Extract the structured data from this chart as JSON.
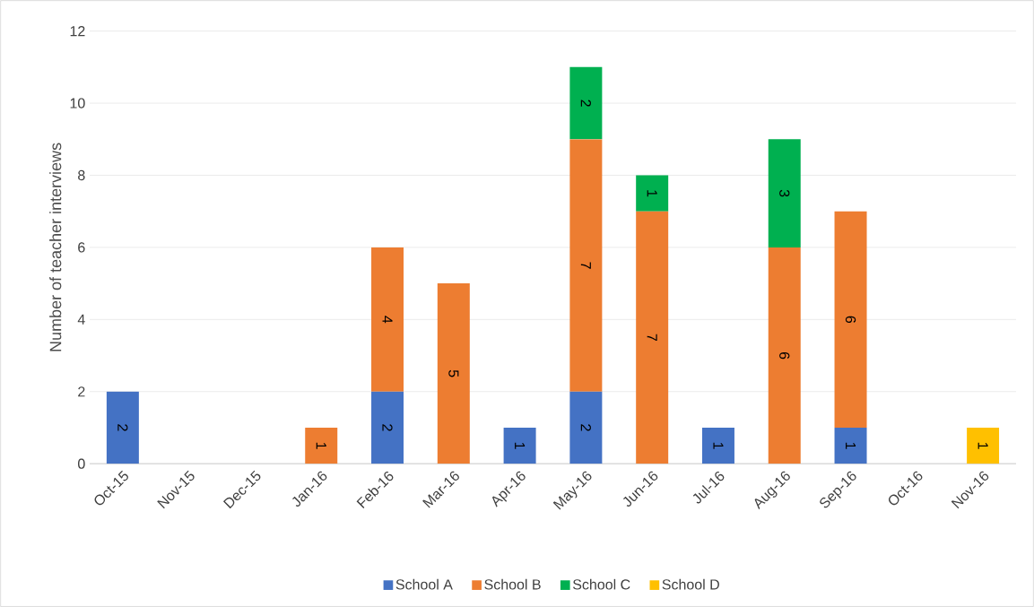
{
  "chart_data": {
    "type": "bar",
    "stacked": true,
    "ylabel": "Number of teacher interviews",
    "categories": [
      "Oct-15",
      "Nov-15",
      "Dec-15",
      "Jan-16",
      "Feb-16",
      "Mar-16",
      "Apr-16",
      "May-16",
      "Jun-16",
      "Jul-16",
      "Aug-16",
      "Sep-16",
      "Oct-16",
      "Nov-16"
    ],
    "series": [
      {
        "name": "School A",
        "color": "#4472c4",
        "values": [
          2,
          0,
          0,
          0,
          2,
          0,
          1,
          2,
          0,
          1,
          0,
          1,
          0,
          0
        ],
        "value_labels": [
          "2",
          null,
          null,
          null,
          "2",
          null,
          "1",
          "2",
          null,
          "1",
          null,
          "1",
          null,
          null
        ]
      },
      {
        "name": "School B",
        "color": "#ed7d31",
        "values": [
          0,
          0,
          0,
          1,
          4,
          5,
          0,
          7,
          7,
          0,
          6,
          6,
          0,
          0
        ],
        "value_labels": [
          null,
          null,
          null,
          "1",
          "4",
          "5",
          null,
          "7",
          "7",
          null,
          "6",
          "6",
          null,
          null
        ]
      },
      {
        "name": "School C",
        "color": "#00b050",
        "values": [
          0,
          0,
          0,
          0,
          0,
          0,
          0,
          2,
          1,
          0,
          3,
          0,
          0,
          0
        ],
        "value_labels": [
          null,
          null,
          null,
          null,
          null,
          null,
          null,
          "2",
          "1",
          null,
          "3",
          null,
          null,
          null
        ]
      },
      {
        "name": "School D",
        "color": "#ffc000",
        "values": [
          0,
          0,
          0,
          0,
          0,
          0,
          0,
          0,
          0,
          0,
          0,
          0,
          0,
          1
        ],
        "value_labels": [
          null,
          null,
          null,
          null,
          null,
          null,
          null,
          null,
          null,
          null,
          null,
          null,
          null,
          "1"
        ]
      }
    ],
    "ylim": [
      0,
      12
    ],
    "yticks": [
      0,
      2,
      4,
      6,
      8,
      10,
      12
    ],
    "grid": "y",
    "legend": "bottom"
  }
}
